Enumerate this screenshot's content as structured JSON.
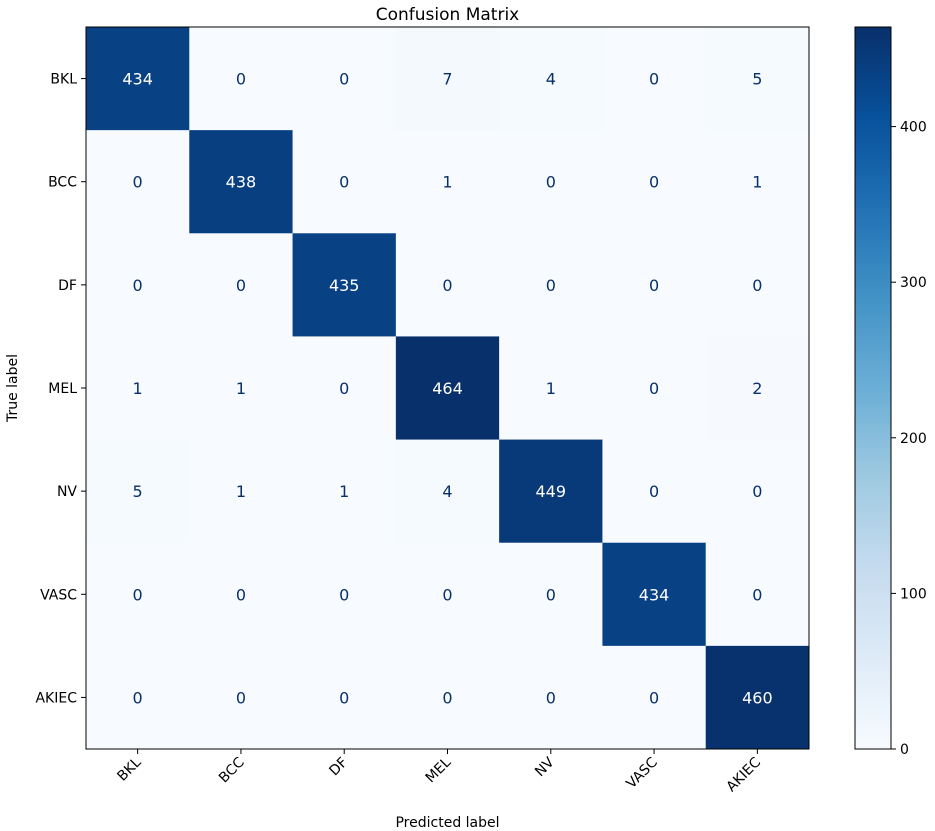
{
  "chart_data": {
    "type": "heatmap",
    "title": "Confusion Matrix",
    "xlabel": "Predicted label",
    "ylabel": "True label",
    "x_categories": [
      "BKL",
      "BCC",
      "DF",
      "MEL",
      "NV",
      "VASC",
      "AKIEC"
    ],
    "y_categories": [
      "BKL",
      "BCC",
      "DF",
      "MEL",
      "NV",
      "VASC",
      "AKIEC"
    ],
    "values": [
      [
        434,
        0,
        0,
        7,
        4,
        0,
        5
      ],
      [
        0,
        438,
        0,
        1,
        0,
        0,
        1
      ],
      [
        0,
        0,
        435,
        0,
        0,
        0,
        0
      ],
      [
        1,
        1,
        0,
        464,
        1,
        0,
        2
      ],
      [
        5,
        1,
        1,
        4,
        449,
        0,
        0
      ],
      [
        0,
        0,
        0,
        0,
        0,
        434,
        0
      ],
      [
        0,
        0,
        0,
        0,
        0,
        0,
        460
      ]
    ],
    "colormap": "Blues",
    "colorbar": {
      "range": [
        0,
        464
      ],
      "ticks": [
        0,
        100,
        200,
        300,
        400
      ]
    },
    "text_colors": {
      "light": "#ffffff",
      "dark": "#08306b"
    }
  }
}
